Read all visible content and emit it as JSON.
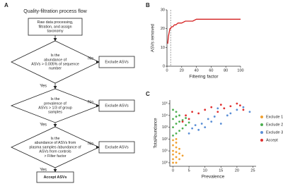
{
  "panel_labels": [
    "A",
    "B",
    "C"
  ],
  "flowchart": {
    "title": "Quality-filtration process flow",
    "nodes": [
      {
        "lines": [
          "Raw data processing,",
          "filtration, and assign",
          "taxonomy"
        ]
      },
      {
        "lines": [
          "Is the",
          "abundance of",
          "ASVs > 0.005% of sequence",
          "number"
        ]
      },
      {
        "lines": [
          "Is the",
          "prevalence of",
          "ASVs > 1/3 of group",
          "samples"
        ]
      },
      {
        "lines": [
          "Is the",
          "abundance of ASVs from",
          "plasma samples /abundance of",
          "ASVs from controls",
          "> Filter factor"
        ]
      },
      {
        "lines": [
          "Accept ASVs"
        ]
      },
      {
        "lines": [
          "Exclude ASVs"
        ]
      },
      {
        "lines": [
          "Exclude ASVs"
        ]
      },
      {
        "lines": [
          "Exclude ASVs"
        ]
      }
    ],
    "edge_labels": [
      "No",
      "Yes",
      "No",
      "Yes",
      "No",
      "Yes"
    ]
  },
  "chart_data": [
    {
      "type": "line",
      "xlabel": "Filtering factor",
      "ylabel": "ASVs removed",
      "x": [
        1,
        2,
        3,
        4,
        5,
        6,
        8,
        10,
        12,
        15,
        20,
        25,
        30,
        35,
        40,
        50,
        60,
        70,
        80,
        90,
        100
      ],
      "values": [
        12,
        16,
        18,
        20,
        20,
        21,
        21,
        22,
        22,
        23,
        23,
        24,
        24,
        24,
        25,
        25,
        25,
        25,
        25,
        25,
        25
      ],
      "color": "#d42020",
      "vline": 5,
      "xlim": [
        0,
        100
      ],
      "xticks": [
        0,
        20,
        40,
        60,
        80,
        100
      ],
      "ylim": [
        0,
        30
      ],
      "yticks": [
        0,
        10,
        20,
        30
      ]
    },
    {
      "type": "scatter",
      "xlabel": "Prevalence",
      "ylabel": "TotalAbundance",
      "yscale": "log",
      "xlim": [
        -1,
        26
      ],
      "xticks": [
        0,
        5,
        10,
        15,
        20,
        25
      ],
      "ylim": [
        0.5,
        200000
      ],
      "yticks": [
        {
          "value": 1,
          "label": "10⁰"
        },
        {
          "value": 10,
          "label": "10¹"
        },
        {
          "value": 100,
          "label": "10²"
        },
        {
          "value": 1000,
          "label": "10³"
        },
        {
          "value": 10000,
          "label": "10⁴"
        },
        {
          "value": 100000,
          "label": "10⁵"
        }
      ],
      "series": [
        {
          "name": "Exclude 1",
          "color": "#f0a030",
          "x": [
            0,
            0,
            0,
            0,
            0,
            1,
            1,
            1,
            1,
            1,
            2,
            2,
            2,
            3,
            0,
            1
          ],
          "values": [
            1,
            2,
            5,
            10,
            30,
            1,
            3,
            8,
            20,
            50,
            2,
            6,
            15,
            4,
            80,
            100
          ]
        },
        {
          "name": "Exclude 2",
          "color": "#4caf50",
          "x": [
            0,
            0,
            0,
            1,
            1,
            1,
            2,
            2,
            2,
            3,
            3,
            4,
            4,
            5,
            1,
            0
          ],
          "values": [
            200,
            1000,
            5000,
            300,
            2000,
            8000,
            500,
            3000,
            10000,
            800,
            4000,
            1500,
            6000,
            2500,
            20000,
            30000
          ]
        },
        {
          "name": "Exclude 3",
          "color": "#5b8fd6",
          "x": [
            5,
            6,
            7,
            8,
            9,
            10,
            11,
            12,
            13,
            15,
            17,
            20,
            22,
            24,
            14,
            18
          ],
          "values": [
            300,
            800,
            1500,
            600,
            2000,
            1000,
            5000,
            3000,
            8000,
            2000,
            10000,
            30000,
            50000,
            20000,
            40000,
            15000
          ]
        },
        {
          "name": "Accept",
          "color": "#e03030",
          "x": [
            3,
            4,
            5,
            6,
            8,
            10,
            12,
            14,
            15,
            16,
            18,
            20,
            21,
            22
          ],
          "values": [
            3000,
            10000,
            5000,
            20000,
            15000,
            30000,
            50000,
            20000,
            80000,
            40000,
            60000,
            100000,
            70000,
            30000
          ]
        }
      ]
    }
  ]
}
